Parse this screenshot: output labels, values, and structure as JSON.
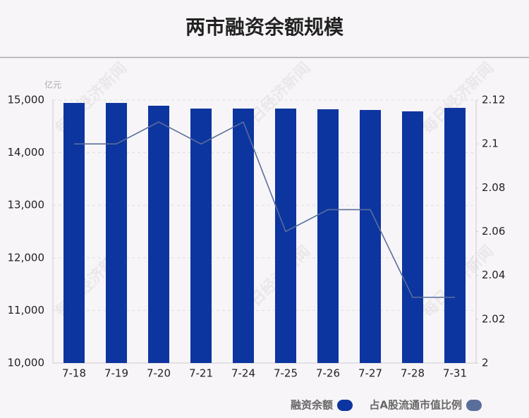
{
  "chart_data": {
    "type": "bar",
    "title": "两市融资余额规模",
    "unit": "亿元",
    "watermark": "每日经济新闻",
    "categories": [
      "7-18",
      "7-19",
      "7-20",
      "7-21",
      "7-24",
      "7-25",
      "7-26",
      "7-27",
      "7-28",
      "7-31"
    ],
    "series": [
      {
        "name": "融资余额",
        "color": "#0d35a0",
        "values": [
          14946,
          14946,
          14893,
          14839,
          14839,
          14839,
          14826,
          14812,
          14786,
          14852
        ]
      },
      {
        "name": "占A股流通市值比例",
        "color": "#5a6e9b",
        "axis": "y2",
        "values": [
          2.1,
          2.1,
          2.11,
          2.1,
          2.11,
          2.06,
          2.07,
          2.07,
          2.03,
          2.03
        ]
      }
    ],
    "ylim": [
      10000,
      15000
    ],
    "yticks": [
      {
        "value": 10000,
        "label": "10,000"
      },
      {
        "value": 11000,
        "label": "11,000"
      },
      {
        "value": 12000,
        "label": "12,000"
      },
      {
        "value": 13000,
        "label": "13,000"
      },
      {
        "value": 14000,
        "label": "14,000"
      },
      {
        "value": 15000,
        "label": "15,000"
      }
    ],
    "y2lim": [
      2,
      2.12
    ],
    "y2ticks": [
      2,
      2.02,
      2.04,
      2.06,
      2.08,
      2.1,
      2.12
    ],
    "grid": true
  }
}
